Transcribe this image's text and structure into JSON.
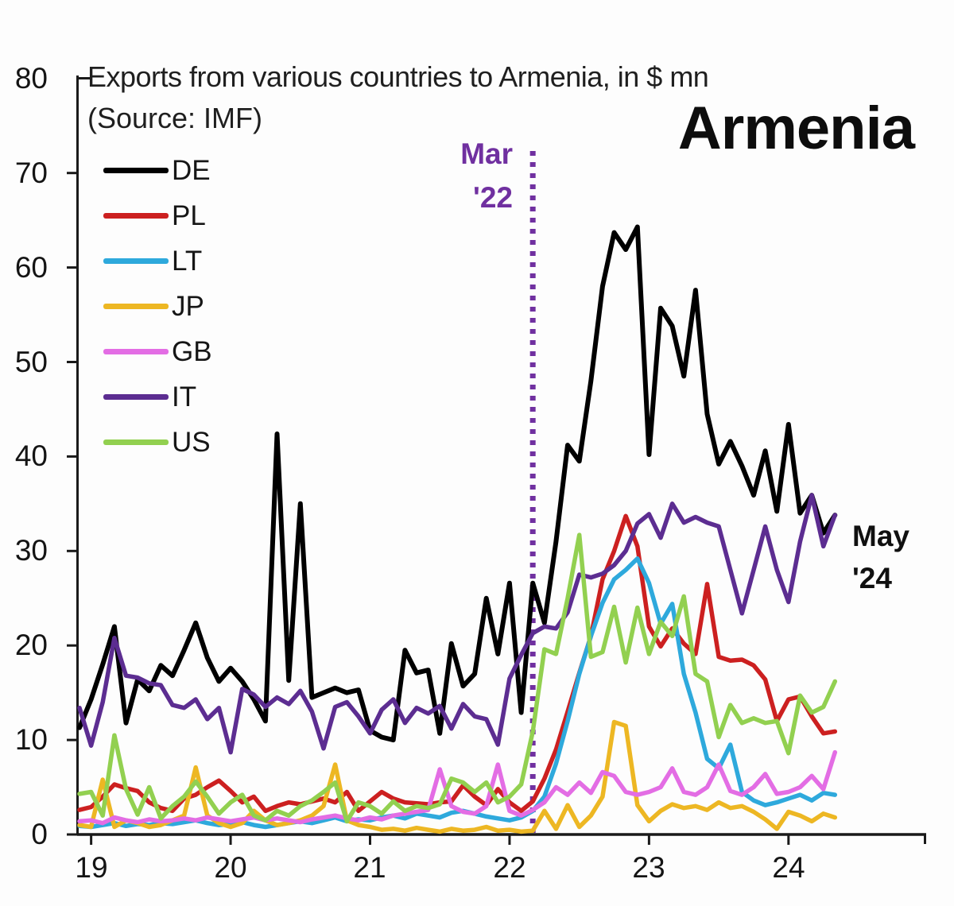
{
  "chart_data": {
    "type": "line",
    "title": "Exports from various countries to Armenia, in $ mn",
    "source_note": "(Source: IMF)",
    "country_label": "Armenia",
    "x_unit": "month",
    "x_start": "2018-12",
    "x_end": "2024-05",
    "n_points": 66,
    "ylim": [
      0,
      80
    ],
    "y_tick_step": 10,
    "grid": false,
    "legend_position": "upper-left",
    "y_tick_labels": [
      "80",
      "70",
      "60",
      "50",
      "40",
      "30",
      "20",
      "10",
      "0"
    ],
    "x_tick_labels": [
      "19",
      "20",
      "21",
      "22",
      "23",
      "24"
    ],
    "x_tick_month_indices": [
      1,
      13,
      25,
      37,
      49,
      61
    ],
    "annotations": {
      "event_line": {
        "text_line1": "Mar",
        "text_line2": "'22",
        "month": "2022-03",
        "month_index": 39,
        "style": "dotted-vertical",
        "color": "#7030a0"
      },
      "end_label": {
        "text_line1": "May",
        "text_line2": "'24",
        "month": "2024-05",
        "color": "#101010"
      }
    },
    "series": [
      {
        "id": "DE",
        "name": "DE",
        "color": "#000000",
        "values": [
          11.3,
          14.3,
          18.0,
          22.0,
          11.8,
          16.4,
          15.2,
          17.9,
          16.8,
          19.5,
          22.4,
          18.7,
          16.2,
          17.6,
          16.2,
          14.3,
          12.0,
          42.4,
          16.3,
          35.0,
          14.5,
          15.0,
          15.5,
          15.0,
          15.3,
          11.0,
          10.3,
          10.0,
          19.5,
          17.1,
          17.4,
          10.7,
          20.2,
          15.7,
          17.0,
          25.0,
          19.1,
          26.6,
          12.9,
          26.6,
          22.4,
          31.0,
          41.2,
          39.5,
          48.0,
          58.0,
          63.7,
          61.9,
          64.3,
          40.2,
          55.7,
          53.8,
          48.5,
          57.6,
          44.5,
          39.2,
          41.6,
          39.0,
          35.9,
          40.6,
          34.2,
          43.4,
          34.0,
          35.9,
          31.9,
          33.8
        ]
      },
      {
        "id": "PL",
        "name": "PL",
        "color": "#cc2020",
        "values": [
          2.6,
          2.9,
          4.0,
          5.3,
          4.9,
          4.6,
          3.4,
          2.8,
          2.5,
          3.8,
          4.2,
          5.0,
          5.7,
          4.6,
          3.4,
          4.0,
          2.5,
          3.0,
          3.4,
          3.2,
          3.5,
          3.8,
          3.4,
          4.5,
          2.5,
          3.5,
          4.5,
          3.8,
          3.4,
          3.3,
          3.2,
          3.4,
          3.5,
          5.2,
          4.0,
          3.1,
          4.8,
          3.4,
          2.5,
          3.5,
          5.9,
          9.0,
          13.0,
          17.1,
          21.0,
          27.0,
          30.0,
          33.7,
          30.5,
          22.0,
          19.9,
          21.8,
          20.2,
          19.1,
          26.5,
          18.8,
          18.4,
          18.5,
          17.9,
          16.4,
          12.0,
          14.3,
          14.6,
          12.5,
          10.7,
          10.9
        ]
      },
      {
        "id": "LT",
        "name": "LT",
        "color": "#2ea9dc",
        "values": [
          0.9,
          0.8,
          1.0,
          1.2,
          0.9,
          1.1,
          1.0,
          1.2,
          1.1,
          1.3,
          1.5,
          1.2,
          1.0,
          1.1,
          1.3,
          1.0,
          0.8,
          1.0,
          1.2,
          1.4,
          1.2,
          1.5,
          1.8,
          1.4,
          1.6,
          1.5,
          1.8,
          2.0,
          1.7,
          2.2,
          2.0,
          1.8,
          2.3,
          2.5,
          2.2,
          1.9,
          1.7,
          1.5,
          1.8,
          2.5,
          4.0,
          7.5,
          12.0,
          17.0,
          21.0,
          24.5,
          27.0,
          28.0,
          29.2,
          26.6,
          22.3,
          24.4,
          17.0,
          12.9,
          8.0,
          7.0,
          9.5,
          4.5,
          3.6,
          3.1,
          3.4,
          3.8,
          4.2,
          3.6,
          4.4,
          4.2
        ]
      },
      {
        "id": "JP",
        "name": "JP",
        "color": "#edb723",
        "values": [
          1.0,
          0.8,
          5.8,
          0.8,
          1.5,
          1.2,
          0.8,
          1.0,
          1.5,
          2.0,
          7.1,
          2.0,
          1.2,
          0.8,
          1.2,
          2.5,
          1.5,
          1.0,
          1.2,
          1.5,
          2.0,
          3.0,
          7.4,
          1.5,
          1.0,
          0.8,
          0.5,
          0.6,
          0.4,
          0.7,
          0.5,
          0.3,
          0.6,
          0.4,
          0.5,
          0.8,
          0.4,
          0.5,
          0.3,
          0.4,
          2.5,
          0.6,
          3.1,
          0.8,
          2.0,
          4.0,
          11.9,
          11.5,
          3.1,
          1.4,
          2.5,
          3.2,
          2.8,
          3.0,
          2.6,
          3.4,
          2.8,
          3.0,
          2.4,
          1.6,
          0.6,
          2.4,
          2.0,
          1.4,
          2.2,
          1.8
        ]
      },
      {
        "id": "GB",
        "name": "GB",
        "color": "#e36de4",
        "values": [
          1.4,
          1.5,
          1.2,
          1.8,
          1.5,
          1.3,
          1.6,
          1.4,
          1.5,
          1.7,
          1.5,
          1.8,
          1.6,
          1.4,
          1.6,
          1.8,
          1.5,
          1.7,
          1.5,
          1.3,
          1.6,
          1.8,
          2.0,
          1.7,
          1.5,
          1.8,
          1.6,
          2.0,
          2.2,
          2.4,
          2.6,
          6.9,
          3.0,
          2.4,
          2.2,
          3.0,
          7.4,
          2.5,
          2.0,
          2.6,
          3.4,
          5.0,
          4.2,
          5.5,
          4.4,
          6.6,
          6.2,
          4.5,
          4.2,
          4.5,
          5.0,
          7.0,
          4.5,
          4.2,
          5.0,
          7.4,
          4.6,
          4.2,
          5.0,
          6.4,
          4.3,
          4.5,
          5.0,
          6.2,
          4.8,
          8.7
        ]
      },
      {
        "id": "IT",
        "name": "IT",
        "color": "#5c2d91",
        "values": [
          13.4,
          9.4,
          14.0,
          20.8,
          16.8,
          16.6,
          16.0,
          15.8,
          13.7,
          13.4,
          14.3,
          12.2,
          13.4,
          8.7,
          15.4,
          14.8,
          13.5,
          14.5,
          13.8,
          15.2,
          13.0,
          9.1,
          13.5,
          14.0,
          12.5,
          10.7,
          13.2,
          14.3,
          11.8,
          13.4,
          12.8,
          13.6,
          11.2,
          13.8,
          12.5,
          12.2,
          9.5,
          16.5,
          19.0,
          21.3,
          22.0,
          21.8,
          23.5,
          27.5,
          27.2,
          27.6,
          28.5,
          30.0,
          32.9,
          33.9,
          31.4,
          35.0,
          33.0,
          33.6,
          33.0,
          32.6,
          28.0,
          23.4,
          28.0,
          32.6,
          28.0,
          24.6,
          31.0,
          35.9,
          30.5,
          33.8
        ]
      },
      {
        "id": "US",
        "name": "US",
        "color": "#92d050",
        "values": [
          4.3,
          4.5,
          2.0,
          10.5,
          4.8,
          2.1,
          5.0,
          1.7,
          3.0,
          4.0,
          5.6,
          4.0,
          2.2,
          3.4,
          4.2,
          2.0,
          1.5,
          2.5,
          2.0,
          3.0,
          3.6,
          4.5,
          5.5,
          1.4,
          3.4,
          3.0,
          2.2,
          3.5,
          2.5,
          3.0,
          2.8,
          3.2,
          5.9,
          5.5,
          4.5,
          5.5,
          3.4,
          4.0,
          5.3,
          10.9,
          19.6,
          19.1,
          25.0,
          31.7,
          18.8,
          19.3,
          24.1,
          18.2,
          24.0,
          19.1,
          22.5,
          21.0,
          25.2,
          17.0,
          16.2,
          10.3,
          13.7,
          11.8,
          12.3,
          11.8,
          12.0,
          8.6,
          14.7,
          12.9,
          13.5,
          16.2
        ]
      }
    ]
  }
}
